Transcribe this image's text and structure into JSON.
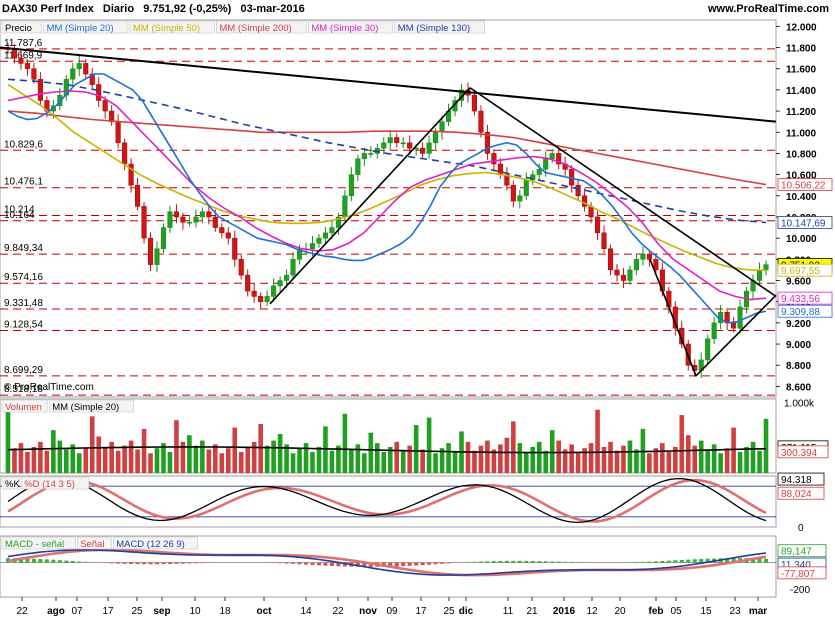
{
  "header": {
    "instrument": "DAX30 Perf Index",
    "timeframe": "Diario",
    "last_price": "9.751,92 (-0,25%)",
    "date": "03-mar-2016",
    "site": "www.ProRealTime.com",
    "watermark": "© ProRealTime.com"
  },
  "chart_data": [
    {
      "type": "candlestick",
      "panel": "price",
      "legend": [
        "Precio",
        "MM (Simple 20)",
        "MM (Simple 50)",
        "MM (Simple 200)",
        "MM (Simple 30)",
        "MM (Simple 130)"
      ],
      "legend_colors": [
        "#000000",
        "#1f6fd6",
        "#c8b400",
        "#d64040",
        "#e020c0",
        "#1f3f9f"
      ],
      "y_ticks": [
        "12.000",
        "11.800",
        "11.600",
        "11.400",
        "11.200",
        "11.000",
        "10.800",
        "10.600",
        "10.400",
        "10.200",
        "10.000",
        "9.800",
        "9.600",
        "9.400",
        "9.200",
        "9.000",
        "8.800",
        "8.600"
      ],
      "ylim": [
        8500,
        12060
      ],
      "horizontal_levels": [
        {
          "label": "11.787,6",
          "value": 11787.6
        },
        {
          "label": "11.669,9",
          "value": 11669.9
        },
        {
          "label": "10.829,6",
          "value": 10829.6
        },
        {
          "label": "10.476,1",
          "value": 10476.1
        },
        {
          "label": "10.214",
          "value": 10214
        },
        {
          "label": "10.164",
          "value": 10164
        },
        {
          "label": "9.849,34",
          "value": 9849.34
        },
        {
          "label": "9.574,16",
          "value": 9574.16
        },
        {
          "label": "9.331,48",
          "value": 9331.48
        },
        {
          "label": "9.128,54",
          "value": 9128.54
        },
        {
          "label": "8.699,29",
          "value": 8699.29
        },
        {
          "label": "8.518,18",
          "value": 8518.18
        }
      ],
      "value_tags": [
        {
          "label": "10.506,22",
          "color": "#d64040",
          "value": 10506.22
        },
        {
          "label": "10.147,69",
          "color": "#1f3f9f",
          "value": 10147.69
        },
        {
          "label": "9.751,92",
          "color": "#000000",
          "bg": "#ffff00",
          "value": 9751.92
        },
        {
          "label": "9.697,55",
          "color": "#c8b400",
          "value": 9697.55
        },
        {
          "label": "9.433,56",
          "color": "#e020c0",
          "value": 9433.56
        },
        {
          "label": "9.309,88",
          "color": "#1f6fd6",
          "value": 9309.88
        }
      ],
      "closes": [
        11780,
        11700,
        11650,
        11600,
        11500,
        11300,
        11200,
        11250,
        11350,
        11500,
        11600,
        11650,
        11550,
        11450,
        11300,
        11200,
        11100,
        10900,
        10700,
        10500,
        10300,
        10000,
        9750,
        9900,
        10100,
        10250,
        10200,
        10150,
        10150,
        10200,
        10250,
        10200,
        10100,
        10050,
        10000,
        9800,
        9650,
        9500,
        9450,
        9400,
        9450,
        9550,
        9600,
        9650,
        9800,
        9900,
        9900,
        9950,
        10000,
        10050,
        10100,
        10200,
        10400,
        10600,
        10750,
        10800,
        10800,
        10850,
        10900,
        10950,
        10900,
        10900,
        10850,
        10850,
        10800,
        10900,
        11000,
        11100,
        11200,
        11300,
        11400,
        11350,
        11200,
        11000,
        10800,
        10700,
        10600,
        10500,
        10350,
        10400,
        10550,
        10600,
        10650,
        10750,
        10800,
        10700,
        10650,
        10500,
        10400,
        10300,
        10200,
        10050,
        9900,
        9700,
        9650,
        9600,
        9700,
        9800,
        9850,
        9800,
        9700,
        9500,
        9350,
        9150,
        9000,
        8800,
        8750,
        8850,
        9050,
        9200,
        9300,
        9200,
        9150,
        9350,
        9500,
        9600,
        9700,
        9750
      ],
      "sma20": [
        11200,
        11150,
        11120,
        11130,
        11180,
        11250,
        11350,
        11450,
        11500,
        11550,
        11550,
        11500,
        11450,
        11400,
        11300,
        11150,
        11000,
        10850,
        10700,
        10550,
        10420,
        10300,
        10200,
        10150,
        10100,
        10050,
        10000,
        9980,
        9960,
        9940,
        9900,
        9870,
        9850,
        9830,
        9820,
        9800,
        9790,
        9790,
        9820,
        9860,
        9900,
        9950,
        10020,
        10150,
        10300,
        10480,
        10600,
        10700,
        10750,
        10800,
        10850,
        10880,
        10900,
        10880,
        10800,
        10700,
        10620,
        10600,
        10580,
        10560,
        10540,
        10480,
        10400,
        10300,
        10180,
        10050,
        9950,
        9870,
        9800,
        9730,
        9650,
        9550,
        9450,
        9350,
        9250,
        9200,
        9210,
        9250,
        9290,
        9310
      ],
      "sma50": [
        11450,
        11350,
        11250,
        11130,
        11000,
        10900,
        10800,
        10700,
        10600,
        10520,
        10450,
        10380,
        10320,
        10260,
        10210,
        10180,
        10150,
        10140,
        10140,
        10150,
        10180,
        10220,
        10280,
        10350,
        10420,
        10500,
        10550,
        10590,
        10610,
        10620,
        10600,
        10570,
        10530,
        10470,
        10400,
        10330,
        10250,
        10180,
        10100,
        10020,
        9950,
        9880,
        9820,
        9760,
        9720,
        9700,
        9697
      ],
      "sma200": [
        11200,
        11180,
        11150,
        11120,
        11100,
        11080,
        11060,
        11040,
        11020,
        11000,
        11000,
        11000,
        11000,
        11010,
        11010,
        11010,
        11000,
        10980,
        10950,
        10900,
        10850,
        10800,
        10750,
        10700,
        10650,
        10600,
        10550,
        10506
      ],
      "sma30": [
        11300,
        11330,
        11360,
        11380,
        11390,
        11380,
        11340,
        11250,
        11100,
        10950,
        10800,
        10650,
        10500,
        10380,
        10280,
        10200,
        10100,
        10020,
        9950,
        9900,
        9880,
        9890,
        9950,
        10050,
        10200,
        10350,
        10480,
        10550,
        10600,
        10650,
        10700,
        10720,
        10740,
        10760,
        10770,
        10750,
        10700,
        10620,
        10530,
        10420,
        10300,
        10150,
        9950,
        9800,
        9700,
        9600,
        9500,
        9450,
        9420,
        9433
      ],
      "sma130": [
        11500,
        11480,
        11450,
        11400,
        11340,
        11280,
        11220,
        11150,
        11080,
        11020,
        10960,
        10900,
        10850,
        10800,
        10760,
        10720,
        10680,
        10620,
        10560,
        10500,
        10440,
        10380,
        10320,
        10260,
        10210,
        10170,
        10148
      ]
    },
    {
      "type": "bar",
      "panel": "volume",
      "legend": [
        "Volumen",
        "MM (Simple 20)"
      ],
      "y_ticks": [
        "1.000k",
        "0"
      ],
      "value_tags": [
        {
          "label": "371.115",
          "color": "#000000"
        },
        {
          "label": "300.394",
          "color": "#d64040"
        }
      ],
      "ylim": [
        0,
        1050000
      ]
    },
    {
      "type": "line",
      "panel": "stochastic",
      "legend": [
        "%K",
        "%D (14 3 5)"
      ],
      "y_ticks": [
        "0"
      ],
      "value_tags": [
        {
          "label": "94.318",
          "color": "#000000"
        },
        {
          "label": "88,024",
          "color": "#d64040"
        }
      ],
      "ylim": [
        0,
        100
      ]
    },
    {
      "type": "line",
      "panel": "macd",
      "legend": [
        "MACD - señal",
        "Señal",
        "MACD (12 26 9)"
      ],
      "y_ticks": [
        "0",
        "-200"
      ],
      "value_tags": [
        {
          "label": "89,147",
          "color": "#22a02a"
        },
        {
          "label": "11,340",
          "color": "#1f3f9f"
        },
        {
          "label": "-77,807",
          "color": "#d64040"
        }
      ],
      "ylim": [
        -260,
        200
      ]
    }
  ],
  "x_ticks": [
    "22",
    "ago",
    "07",
    "17",
    "25",
    "sep",
    "10",
    "18",
    "oct",
    "14",
    "22",
    "nov",
    "09",
    "17",
    "25",
    "dic",
    "11",
    "21",
    "2016",
    "12",
    "20",
    "feb",
    "05",
    "15",
    "23",
    "mar"
  ]
}
